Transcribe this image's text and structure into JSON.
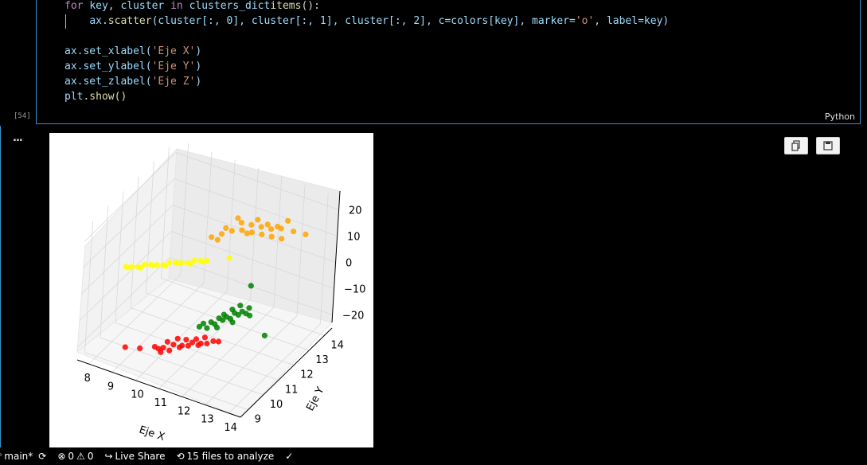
{
  "code_cell": {
    "line1": {
      "for": "for",
      "key": "key",
      ",": ",",
      "cluster": "cluster",
      "in": "in",
      "clusters_dict": "clusters_dict",
      ".": ".",
      "items": "items",
      "tail": "():"
    },
    "line2": {
      "ax": "ax",
      "scatter": "scatter",
      "args": "(cluster[:, 0], cluster[:, 1], cluster[:, 2], c=colors[key], marker=",
      "marker": "'o'",
      "tail": ", label=key)"
    },
    "line3": {
      "call": "ax.set_xlabel(",
      "str": "'Eje X'",
      "close": ")"
    },
    "line4": {
      "call": "ax.set_ylabel(",
      "str": "'Eje Y'",
      "close": ")"
    },
    "line5": {
      "call": "ax.set_zlabel(",
      "str": "'Eje Z'",
      "close": ")"
    },
    "line6": {
      "plt": "plt",
      "show": ".show()"
    },
    "execution_count": "[54]",
    "language": "Python"
  },
  "output": {
    "more_label": "...",
    "copy_icon": "copy-icon",
    "save_icon": "save-icon"
  },
  "chart_data": {
    "type": "scatter",
    "projection": "3d",
    "xlabel": "Eje X",
    "ylabel": "Eje Y",
    "zlabel": "Eje Z",
    "x_ticks": [
      "8",
      "9",
      "10",
      "11",
      "12",
      "13",
      "14"
    ],
    "y_ticks": [
      "9",
      "10",
      "11",
      "12",
      "13",
      "14"
    ],
    "z_ticks": [
      "20",
      "10",
      "0",
      "−10",
      "−20"
    ],
    "xlim": [
      7.5,
      14.5
    ],
    "ylim": [
      8.5,
      14.5
    ],
    "zlim": [
      -25,
      25
    ],
    "grid": true,
    "series": [
      {
        "color": "#ffa500",
        "points": [
          [
            11.2,
            11.2,
            18
          ],
          [
            11.5,
            11.4,
            19
          ],
          [
            11.8,
            11.6,
            20
          ],
          [
            12.1,
            11.8,
            20
          ],
          [
            12.4,
            12.0,
            19
          ],
          [
            12.7,
            12.2,
            18
          ],
          [
            13.0,
            12.4,
            17
          ],
          [
            13.3,
            12.6,
            16
          ],
          [
            11.6,
            11.5,
            21
          ],
          [
            12.0,
            11.9,
            22
          ],
          [
            12.3,
            12.1,
            21
          ],
          [
            12.6,
            12.3,
            20
          ],
          [
            12.9,
            12.5,
            19
          ],
          [
            13.2,
            12.7,
            19
          ],
          [
            11.4,
            11.3,
            17
          ],
          [
            12.2,
            12.0,
            18
          ],
          [
            12.8,
            12.4,
            21
          ],
          [
            13.1,
            12.6,
            20
          ],
          [
            13.6,
            12.9,
            18
          ],
          [
            14.0,
            13.1,
            17
          ],
          [
            12.5,
            12.2,
            23
          ],
          [
            11.9,
            11.8,
            24
          ],
          [
            13.4,
            12.8,
            22
          ]
        ]
      },
      {
        "color": "#ffff00",
        "points": [
          [
            8.1,
            10.5,
            1
          ],
          [
            8.3,
            10.6,
            1
          ],
          [
            8.5,
            10.7,
            1
          ],
          [
            8.7,
            10.8,
            2
          ],
          [
            8.9,
            10.9,
            2
          ],
          [
            9.1,
            11.0,
            2
          ],
          [
            9.3,
            11.1,
            2
          ],
          [
            9.5,
            11.2,
            3
          ],
          [
            9.7,
            11.3,
            3
          ],
          [
            9.9,
            11.4,
            3
          ],
          [
            10.1,
            11.5,
            3
          ],
          [
            10.3,
            11.6,
            4
          ],
          [
            10.5,
            11.7,
            4
          ],
          [
            10.7,
            11.8,
            4
          ],
          [
            8.2,
            10.5,
            1
          ],
          [
            8.6,
            10.7,
            1
          ],
          [
            9.0,
            10.9,
            2
          ],
          [
            9.4,
            11.1,
            2
          ],
          [
            9.8,
            11.3,
            3
          ],
          [
            10.2,
            11.5,
            3
          ],
          [
            10.6,
            11.7,
            4
          ],
          [
            11.4,
            12.2,
            5
          ]
        ]
      },
      {
        "color": "#008000",
        "points": [
          [
            11.5,
            10.5,
            -10
          ],
          [
            11.7,
            10.7,
            -10
          ],
          [
            11.9,
            10.9,
            -9
          ],
          [
            12.1,
            11.1,
            -9
          ],
          [
            12.3,
            11.3,
            -8
          ],
          [
            12.5,
            11.5,
            -8
          ],
          [
            11.6,
            10.6,
            -12
          ],
          [
            11.8,
            10.8,
            -11
          ],
          [
            12.0,
            11.0,
            -10
          ],
          [
            12.2,
            11.2,
            -10
          ],
          [
            12.4,
            11.4,
            -9
          ],
          [
            12.6,
            11.6,
            -9
          ],
          [
            11.4,
            10.4,
            -11
          ],
          [
            11.9,
            10.8,
            -12
          ],
          [
            12.3,
            11.2,
            -11
          ],
          [
            12.7,
            11.7,
            -10
          ],
          [
            12.1,
            10.9,
            -7
          ],
          [
            12.4,
            11.5,
            -6
          ],
          [
            12.2,
            11.3,
            -7
          ],
          [
            12.6,
            11.8,
            -8
          ],
          [
            13.5,
            11.5,
            -14
          ],
          [
            12.5,
            12.0,
            -1
          ]
        ]
      },
      {
        "color": "#ff0000",
        "points": [
          [
            9.0,
            9.3,
            -20
          ],
          [
            9.5,
            9.5,
            -20
          ],
          [
            10.0,
            9.7,
            -19
          ],
          [
            10.3,
            9.8,
            -19
          ],
          [
            10.6,
            10.0,
            -18
          ],
          [
            10.9,
            10.1,
            -18
          ],
          [
            11.2,
            10.3,
            -17
          ],
          [
            11.5,
            10.4,
            -17
          ],
          [
            10.1,
            9.8,
            -20
          ],
          [
            10.5,
            9.9,
            -20
          ],
          [
            10.8,
            10.1,
            -19
          ],
          [
            11.1,
            10.2,
            -18
          ],
          [
            11.4,
            10.4,
            -18
          ],
          [
            11.7,
            10.5,
            -17
          ],
          [
            10.4,
            9.9,
            -17
          ],
          [
            10.7,
            10.1,
            -16
          ],
          [
            11.0,
            10.2,
            -16
          ],
          [
            11.3,
            10.4,
            -16
          ],
          [
            11.6,
            10.5,
            -15
          ],
          [
            11.9,
            10.6,
            -16
          ],
          [
            10.2,
            9.8,
            -21
          ],
          [
            12.0,
            10.8,
            -17
          ]
        ]
      }
    ]
  },
  "status_bar": {
    "branch": "main*",
    "errors": "0",
    "warnings": "0",
    "live_share": "Live Share",
    "analyze": "15 files to analyze",
    "check": "✓"
  }
}
